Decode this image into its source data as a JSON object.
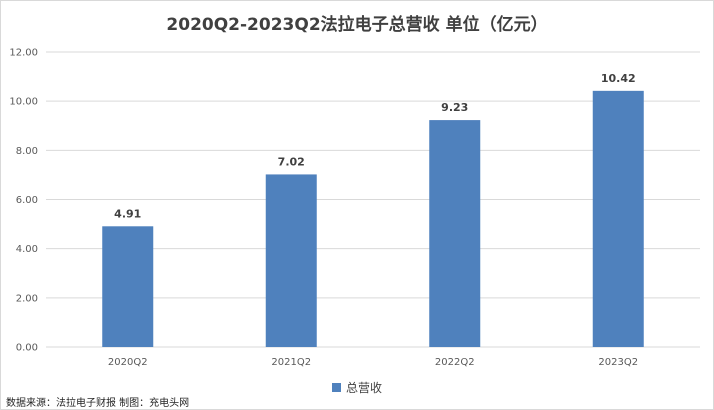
{
  "chart_data": {
    "type": "bar",
    "title": "2020Q2-2023Q2法拉电子总营收 单位（亿元）",
    "categories": [
      "2020Q2",
      "2021Q2",
      "2022Q2",
      "2023Q2"
    ],
    "series": [
      {
        "name": "总营收",
        "values": [
          4.91,
          7.02,
          9.23,
          10.42
        ],
        "labels": [
          "4.91",
          "7.02",
          "9.23",
          "10.42"
        ]
      }
    ],
    "ylim": [
      0,
      12
    ],
    "yticks": [
      "0.00",
      "2.00",
      "4.00",
      "6.00",
      "8.00",
      "10.00",
      "12.00"
    ],
    "grid": true,
    "legend": "bottom",
    "bar_color": "#4f81bd",
    "gridline_color": "#d9d9d9"
  },
  "footer": {
    "source": "数据来源：法拉电子财报 制图：充电头网"
  }
}
